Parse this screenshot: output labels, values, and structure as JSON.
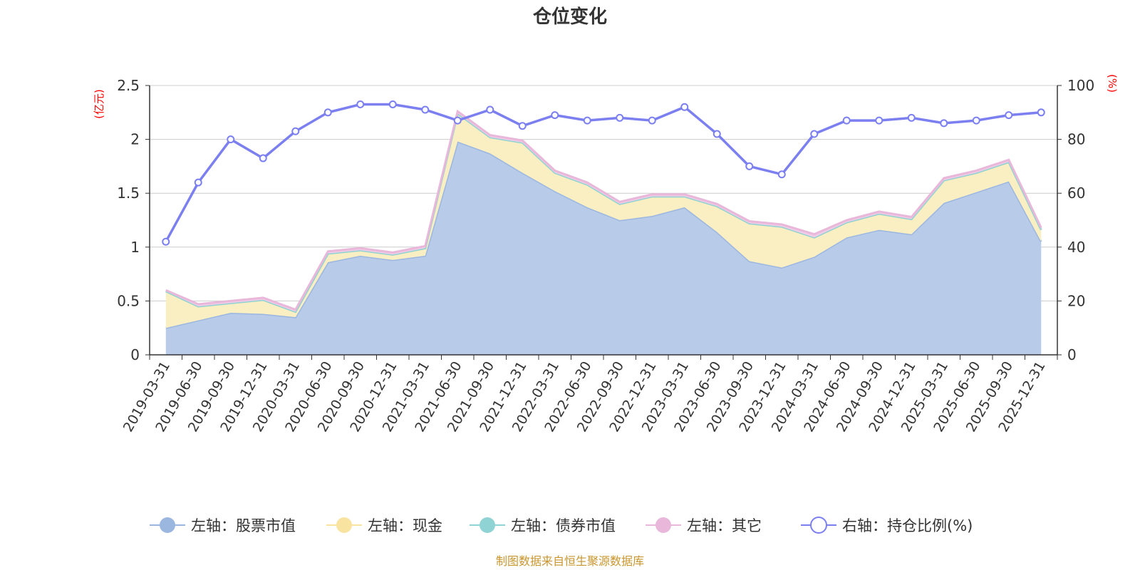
{
  "chart_data": {
    "type": "area",
    "title": "仓位变化",
    "source_note": "制图数据来自恒生聚源数据库",
    "left_axis": {
      "unit": "(亿元)",
      "ylim": [
        0,
        2.5
      ],
      "ticks": [
        "0",
        "0.5",
        "1",
        "1.5",
        "2",
        "2.5"
      ]
    },
    "right_axis": {
      "unit": "(%)",
      "ylim": [
        0,
        100
      ],
      "ticks": [
        "0",
        "20",
        "40",
        "60",
        "80",
        "100"
      ]
    },
    "grid": true,
    "legend_position": "bottom",
    "categories": [
      "2019-03-31",
      "2019-06-30",
      "2019-09-30",
      "2019-12-31",
      "2020-03-31",
      "2020-06-30",
      "2020-09-30",
      "2020-12-31",
      "2021-03-31",
      "2021-06-30",
      "2021-09-30",
      "2021-12-31",
      "2022-03-31",
      "2022-06-30",
      "2022-09-30",
      "2022-12-31",
      "2023-03-31",
      "2023-06-30",
      "2023-09-30",
      "2023-12-31",
      "2024-03-31",
      "2024-06-30",
      "2024-09-30",
      "2024-12-31",
      "2025-03-31",
      "2025-06-30",
      "2025-09-30",
      "2025-12-31"
    ],
    "series": [
      {
        "name": "左轴：股票市值",
        "axis": "left",
        "stack": true,
        "color": "#9bb7e0",
        "fill": "#b8cbe9",
        "values": [
          0.25,
          0.32,
          0.39,
          0.38,
          0.35,
          0.86,
          0.92,
          0.88,
          0.92,
          1.98,
          1.87,
          1.69,
          1.52,
          1.37,
          1.25,
          1.29,
          1.37,
          1.14,
          0.87,
          0.81,
          0.91,
          1.09,
          1.16,
          1.12,
          1.41,
          1.51,
          1.61,
          1.05
        ]
      },
      {
        "name": "左轴：现金",
        "axis": "left",
        "stack": true,
        "color": "#f8e3a1",
        "fill": "#faeec3",
        "values": [
          0.34,
          0.13,
          0.09,
          0.13,
          0.05,
          0.08,
          0.05,
          0.05,
          0.07,
          0.26,
          0.15,
          0.28,
          0.17,
          0.21,
          0.15,
          0.18,
          0.1,
          0.24,
          0.35,
          0.38,
          0.18,
          0.14,
          0.15,
          0.14,
          0.21,
          0.18,
          0.18,
          0.11
        ]
      },
      {
        "name": "左轴：债券市值",
        "axis": "left",
        "stack": true,
        "color": "#8fd3d4",
        "fill": "#8fd3d4",
        "values": [
          0,
          0,
          0,
          0,
          0,
          0,
          0,
          0,
          0,
          0,
          0,
          0,
          0,
          0,
          0,
          0,
          0,
          0,
          0,
          0,
          0,
          0,
          0,
          0,
          0,
          0,
          0,
          0
        ]
      },
      {
        "name": "左轴：其它",
        "axis": "left",
        "stack": true,
        "color": "#e8b7d9",
        "fill": "#f0cde6",
        "values": [
          0.01,
          0.02,
          0.02,
          0.02,
          0.02,
          0.02,
          0.02,
          0.02,
          0.02,
          0.02,
          0.02,
          0.02,
          0.02,
          0.02,
          0.02,
          0.02,
          0.02,
          0.02,
          0.02,
          0.02,
          0.03,
          0.02,
          0.02,
          0.02,
          0.02,
          0.02,
          0.02,
          0.02
        ]
      },
      {
        "name": "右轴：持仓比例(%)",
        "axis": "right",
        "stack": false,
        "color": "#7b7ff0",
        "fill": "none",
        "values": [
          42,
          64,
          80,
          73,
          83,
          90,
          93,
          93,
          91,
          87,
          91,
          85,
          89,
          87,
          88,
          87,
          92,
          82,
          70,
          67,
          82,
          87,
          87,
          88,
          86,
          87,
          89,
          90
        ]
      }
    ]
  }
}
